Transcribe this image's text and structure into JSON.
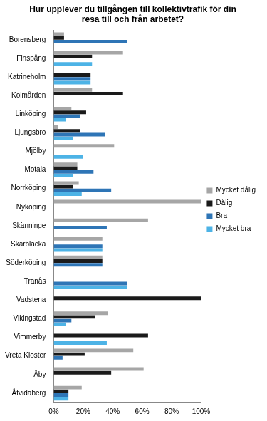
{
  "chart_data": {
    "type": "bar",
    "orientation": "horizontal",
    "title": [
      "Hur upplever du tillgången till kollektivtrafik för din",
      "resa till och från arbetet?"
    ],
    "categories": [
      "Borensberg",
      "Finspång",
      "Katrineholm",
      "Kolmården",
      "Linköping",
      "Ljungsbro",
      "Mjölby",
      "Motala",
      "Norrköping",
      "Nyköping",
      "Skänninge",
      "Skärblacka",
      "Söderköping",
      "Tranås",
      "Vadstena",
      "Vikingstad",
      "Vimmerby",
      "Vreta Kloster",
      "Åby",
      "Åtvidaberg"
    ],
    "series": [
      {
        "name": "Mycket dålig",
        "color": "#a6a6a6",
        "values": [
          7,
          47,
          0,
          26,
          12,
          3,
          41,
          16,
          17,
          100,
          64,
          33,
          33,
          0,
          0,
          37,
          0,
          54,
          61,
          19
        ]
      },
      {
        "name": "Dålig",
        "color": "#1a1a1a",
        "values": [
          7,
          26,
          25,
          47,
          22,
          18,
          0,
          16,
          13,
          0,
          0,
          0,
          33,
          0,
          100,
          28,
          64,
          21,
          39,
          10
        ]
      },
      {
        "name": "Bra",
        "color": "#2e75b6",
        "values": [
          50,
          0,
          25,
          0,
          18,
          35,
          0,
          27,
          39,
          0,
          36,
          33,
          33,
          50,
          0,
          12,
          0,
          6,
          0,
          10
        ]
      },
      {
        "name": "Mycket bra",
        "color": "#4db3e6",
        "values": [
          0,
          26,
          25,
          0,
          8,
          13,
          20,
          13,
          19,
          0,
          0,
          33,
          0,
          50,
          0,
          8,
          36,
          0,
          0,
          10
        ]
      }
    ],
    "xlim": [
      0,
      100
    ],
    "xticks": [
      {
        "value": 0,
        "label": "0%"
      },
      {
        "value": 20,
        "label": "20%"
      },
      {
        "value": 40,
        "label": "40%"
      },
      {
        "value": 60,
        "label": "60%"
      },
      {
        "value": 80,
        "label": "80%"
      },
      {
        "value": 100,
        "label": "100%"
      }
    ],
    "grid": false,
    "legend": "right"
  }
}
